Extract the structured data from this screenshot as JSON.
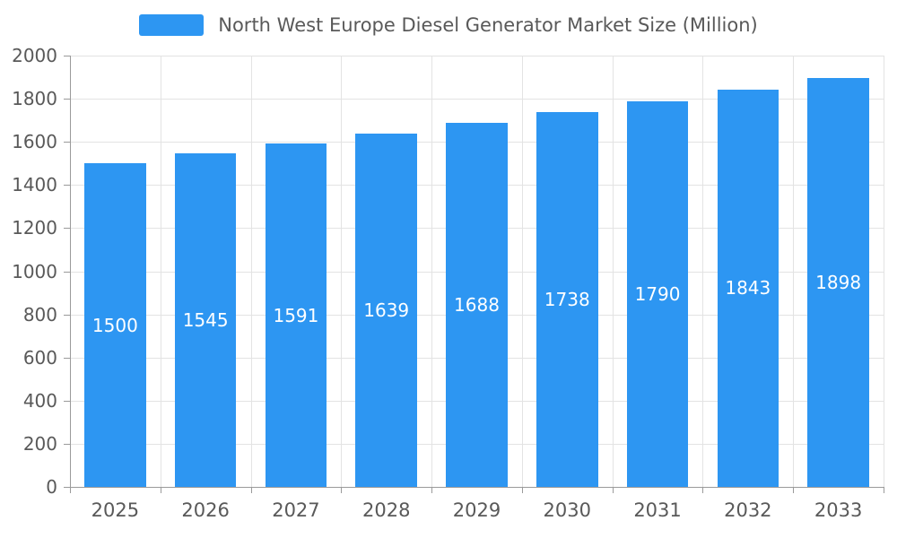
{
  "legend": {
    "label": "North West Europe Diesel Generator Market Size (Million)"
  },
  "chart_data": {
    "type": "bar",
    "title": "North West Europe Diesel Generator Market Size (Million)",
    "categories": [
      "2025",
      "2026",
      "2027",
      "2028",
      "2029",
      "2030",
      "2031",
      "2032",
      "2033"
    ],
    "values": [
      1500,
      1545,
      1591,
      1639,
      1688,
      1738,
      1790,
      1843,
      1898
    ],
    "xlabel": "",
    "ylabel": "",
    "ylim": [
      0,
      2000
    ],
    "ytick_step": 200,
    "grid": true,
    "legend_position": "top",
    "bar_color": "#2d96f2",
    "bar_label_color": "#ffffff",
    "axis_text_color": "#595959",
    "grid_color": "#e3e3e3",
    "axis_line_color": "#9a9a9a"
  }
}
